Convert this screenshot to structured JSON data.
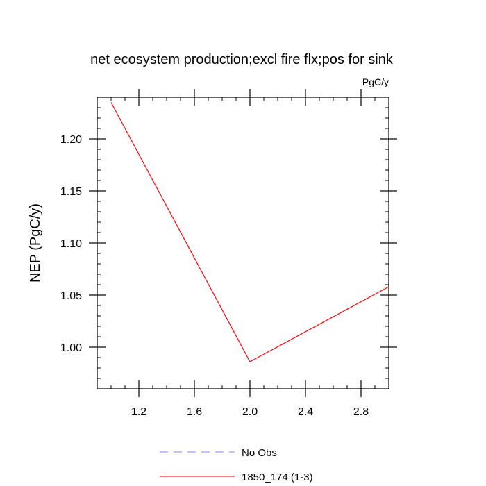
{
  "chart_data": {
    "type": "line",
    "title": "net ecosystem production;excl fire flx;pos for sink",
    "units": "PgC/y",
    "xlabel": "",
    "ylabel": "NEP  (PgC/y)",
    "xlim": [
      0.9,
      3.0
    ],
    "ylim": [
      0.96,
      1.24
    ],
    "xticks": [
      {
        "value": 1.2,
        "label": "1.2"
      },
      {
        "value": 1.6,
        "label": "1.6"
      },
      {
        "value": 2.0,
        "label": "2.0"
      },
      {
        "value": 2.4,
        "label": "2.4"
      },
      {
        "value": 2.8,
        "label": "2.8"
      }
    ],
    "yticks": [
      {
        "value": 1.0,
        "label": "1.00"
      },
      {
        "value": 1.05,
        "label": "1.05"
      },
      {
        "value": 1.1,
        "label": "1.10"
      },
      {
        "value": 1.15,
        "label": "1.15"
      },
      {
        "value": 1.2,
        "label": "1.20"
      }
    ],
    "grid": false,
    "legend_position": "bottom",
    "series": [
      {
        "name": "No Obs",
        "color": "#8080ff",
        "dash": "dashed",
        "x": [],
        "y": []
      },
      {
        "name": "1850_174 (1-3)",
        "color": "#ff0000",
        "dash": "solid",
        "x": [
          1.0,
          2.0,
          3.0
        ],
        "y": [
          1.235,
          0.986,
          1.058
        ]
      }
    ]
  }
}
